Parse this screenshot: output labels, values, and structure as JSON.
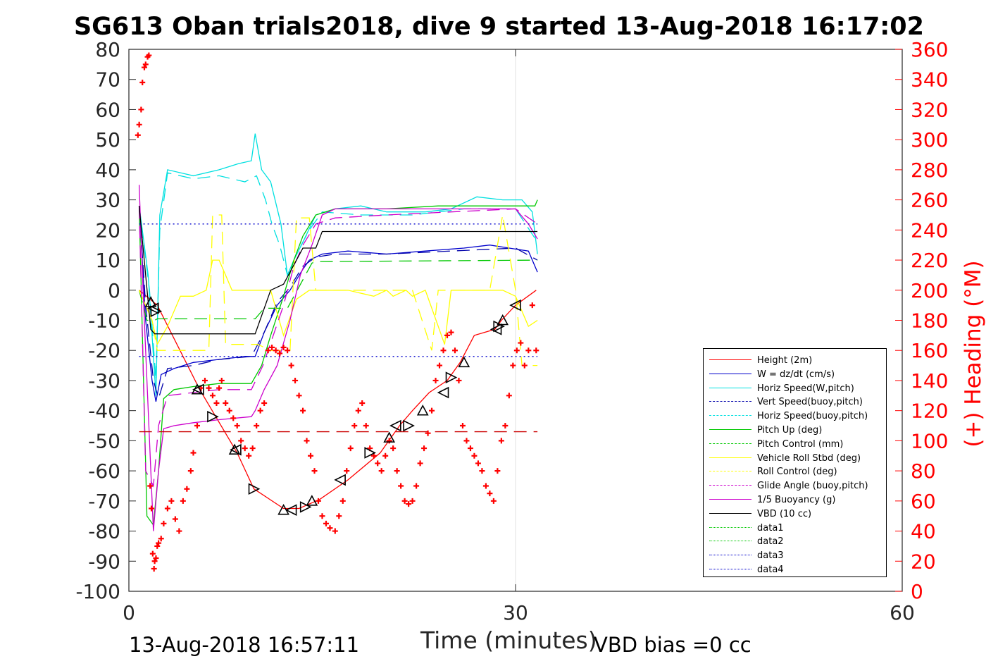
{
  "header": {
    "title": "SG613 Oban trials2018, dive 9 started 13-Aug-2018 16:17:02"
  },
  "footer": {
    "left": "13-Aug-2018 16:57:11",
    "right": "VBD bias =0 cc"
  },
  "chart_data": {
    "type": "line",
    "xlabel": "Time (minutes)",
    "ylabel": "",
    "y2label": "(+) Heading (°M)",
    "xlim": [
      0,
      60
    ],
    "ylim": [
      -100,
      80
    ],
    "y2lim": [
      0,
      360
    ],
    "xticks": [
      0,
      30,
      60
    ],
    "yticks": [
      -100,
      -90,
      -80,
      -70,
      -60,
      -50,
      -40,
      -30,
      -20,
      -10,
      0,
      10,
      20,
      30,
      40,
      50,
      60,
      70,
      80
    ],
    "y2ticks": [
      0,
      20,
      40,
      60,
      80,
      100,
      120,
      140,
      160,
      180,
      200,
      220,
      240,
      260,
      280,
      300,
      320,
      340,
      360
    ],
    "grid": "x-only",
    "legend_position": "lower-right",
    "series": [
      {
        "name": "Height (2m)",
        "color": "#ff0000",
        "style": "solid",
        "x": [
          0.8,
          2.2,
          5.5,
          8.4,
          9.7,
          12.0,
          13.2,
          14.8,
          17.0,
          19.5,
          21.0,
          22.0,
          23.3,
          24.7,
          25.7,
          26.8,
          28.4,
          28.9,
          30.0,
          31.6
        ],
        "y": [
          0,
          -5,
          -33,
          -54,
          -66,
          -72.5,
          -72.5,
          -69.5,
          -63,
          -54,
          -45,
          -40,
          -34,
          -30,
          -24,
          -15,
          -13,
          -10,
          -5,
          0
        ]
      },
      {
        "name": "W = dz/dt (cm/s)",
        "color": "#0000cc",
        "style": "solid",
        "x": [
          0.8,
          1.3,
          1.8,
          2.1,
          2.5,
          3.5,
          5.0,
          7.0,
          9.0,
          9.8,
          10.5,
          11.5,
          12.5,
          13.5,
          14.0,
          15.0,
          17.0,
          20.0,
          23.0,
          26.0,
          28.0,
          29.5,
          31.0,
          31.7
        ],
        "y": [
          28,
          -10,
          -30,
          -37,
          -28,
          -26,
          -24,
          -23,
          -22,
          -22,
          -14,
          -5,
          0,
          7,
          10,
          12,
          13,
          12,
          13,
          14,
          15,
          14,
          13,
          6
        ]
      },
      {
        "name": "Horiz Speed(W,pitch)",
        "color": "#00e0e0",
        "style": "solid",
        "x": [
          0.8,
          1.5,
          2.1,
          2.4,
          3.0,
          5.0,
          7.0,
          8.5,
          9.5,
          9.8,
          10.3,
          11.0,
          11.8,
          12.3,
          12.8,
          13.5,
          14.5,
          16.0,
          18.0,
          20.0,
          23.0,
          25.0,
          27.0,
          29.0,
          30.5,
          31.3,
          31.7
        ],
        "y": [
          28,
          5,
          -35,
          25,
          40,
          38,
          40,
          42,
          43,
          52,
          40,
          36,
          22,
          5,
          10,
          16,
          25,
          27,
          28,
          26,
          26,
          27,
          31,
          30,
          30,
          26,
          12
        ]
      },
      {
        "name": "Vert Speed(buoy,pitch)",
        "color": "#0000aa",
        "style": "dashed",
        "x": [
          0.8,
          1.3,
          1.9,
          2.3,
          3.0,
          5.0,
          7.0,
          9.5,
          10.5,
          11.5,
          12.5,
          13.5,
          14.5,
          16.0,
          20.0,
          25.0,
          30.0,
          31.7
        ],
        "y": [
          28,
          -5,
          -30,
          -36,
          -26,
          -25,
          -23,
          -22,
          -14,
          -4,
          1,
          8,
          11,
          12,
          12,
          13,
          14,
          10
        ]
      },
      {
        "name": "Horiz Speed(buoy,pitch)",
        "color": "#00e0e0",
        "style": "dashed",
        "x": [
          0.8,
          1.6,
          2.1,
          2.4,
          3.0,
          5.0,
          7.0,
          9.0,
          9.9,
          10.6,
          11.1,
          11.7,
          12.3,
          13.0,
          14.0,
          15.0,
          18.0,
          22.0,
          26.0,
          30.0,
          31.7
        ],
        "y": [
          28,
          0,
          -30,
          20,
          39,
          37,
          38,
          36,
          38,
          30,
          22,
          15,
          5,
          12,
          20,
          26,
          25,
          25,
          27,
          27,
          16
        ]
      },
      {
        "name": "Pitch Up (deg)",
        "color": "#00c800",
        "style": "solid",
        "x": [
          0.8,
          1.4,
          1.9,
          2.3,
          2.7,
          3.5,
          5.0,
          7.0,
          9.5,
          10.3,
          11.0,
          12.0,
          12.8,
          13.5,
          14.5,
          16.0,
          20.0,
          24.0,
          28.0,
          30.5,
          31.5,
          31.7
        ],
        "y": [
          28,
          -75,
          -78,
          -60,
          -36,
          -33,
          -32,
          -31,
          -31,
          -25,
          -15,
          -2,
          10,
          18,
          25,
          27,
          27,
          28,
          28,
          28,
          28,
          30
        ]
      },
      {
        "name": "Pitch Control (mm)",
        "color": "#00c800",
        "style": "dashed",
        "x": [
          0.8,
          1.4,
          2.0,
          2.2,
          9.8,
          10.5,
          12.3,
          14.2,
          14.5,
          31.7
        ],
        "y": [
          0,
          -10,
          -10,
          -9.5,
          -9.5,
          -6,
          -6,
          9,
          9.5,
          10
        ]
      },
      {
        "name": "Vehicle Roll Stbd (deg)",
        "color": "#ffff00",
        "style": "solid",
        "x": [
          0.8,
          1.8,
          2.2,
          3.0,
          4.0,
          5.0,
          6.0,
          6.5,
          7.0,
          7.5,
          8.0,
          8.5,
          9.0,
          10.0,
          11.0,
          12.0,
          13.0,
          14.0,
          15.0,
          17.0,
          19.0,
          20.0,
          20.5,
          21.5,
          22.0,
          23.0,
          24.0,
          24.5,
          25.0,
          25.5,
          26.0,
          27.0,
          28.0,
          29.0,
          30.0,
          31.0,
          31.7
        ],
        "y": [
          0,
          -10,
          -18,
          -12,
          -2,
          -2,
          0,
          10,
          10,
          5,
          0,
          0,
          0,
          0,
          0,
          -15,
          -3,
          0,
          0,
          0,
          -2,
          0,
          -2,
          0,
          -2,
          0,
          -12,
          -18,
          0,
          0,
          0,
          0,
          0,
          0,
          -2,
          -12,
          -10
        ]
      },
      {
        "name": "Roll Control (deg)",
        "color": "#ffff00",
        "style": "dashed",
        "x": [
          0.8,
          1.8,
          2.2,
          5.0,
          6.2,
          6.5,
          7.2,
          7.5,
          8.0,
          10.0,
          11.0,
          12.5,
          13.0,
          14.0,
          14.5,
          16.0,
          18.0,
          20.0,
          22.0,
          23.5,
          24.0,
          25.0,
          26.0,
          27.0,
          28.0,
          29.0,
          30.0,
          30.5,
          31.7
        ],
        "y": [
          0,
          -10,
          -20,
          -20,
          -20,
          25,
          25,
          -18,
          -18,
          -18,
          -20,
          -20,
          24,
          24,
          0,
          0,
          0,
          0,
          0,
          -20,
          0,
          0,
          0,
          0,
          0,
          25,
          0,
          -25,
          -25
        ]
      },
      {
        "name": "Glide Angle (buoy,pitch)",
        "color": "#cc00cc",
        "style": "dashed",
        "x": [
          0.8,
          1.3,
          1.9,
          2.3,
          3.0,
          5.0,
          7.0,
          9.5,
          10.4,
          11.2,
          12.0,
          12.8,
          13.5,
          14.5,
          16.0,
          20.0,
          25.0,
          30.0,
          31.7
        ],
        "y": [
          28,
          -60,
          -65,
          -45,
          -35,
          -34,
          -33,
          -33,
          -25,
          -15,
          -5,
          8,
          15,
          22,
          24,
          25,
          26,
          27,
          22
        ]
      },
      {
        "name": "1/5 Buoyancy (g)",
        "color": "#cc00cc",
        "style": "solid",
        "x": [
          0.8,
          1.1,
          1.6,
          1.9,
          2.3,
          2.7,
          3.5,
          5.0,
          7.0,
          9.5,
          9.8,
          10.5,
          11.5,
          12.5,
          13.3,
          14.2,
          15.0,
          16.0,
          20.0,
          25.0,
          30.0,
          31.0,
          31.7
        ],
        "y": [
          35,
          0,
          -50,
          -80,
          -60,
          -46,
          -45,
          -44,
          -43,
          -42,
          -40,
          -33,
          -25,
          -10,
          5,
          15,
          25,
          27,
          27,
          27,
          27,
          22,
          17
        ]
      },
      {
        "name": "VBD (10 cc)",
        "color": "#000000",
        "style": "solid",
        "x": [
          0.8,
          1.3,
          1.7,
          2.0,
          2.4,
          9.8,
          11.0,
          12.0,
          13.0,
          13.5,
          14.5,
          15.0,
          31.7
        ],
        "y": [
          28,
          5,
          -13,
          -14.5,
          -14.5,
          -14.5,
          0,
          2,
          10,
          14,
          14,
          19.5,
          19.5
        ]
      },
      {
        "name": "data1",
        "color": "#00c800",
        "style": "dotted",
        "x": [],
        "y": []
      },
      {
        "name": "data2",
        "color": "#00c800",
        "style": "dotted",
        "x": [],
        "y": []
      },
      {
        "name": "data3",
        "color": "#0000cc",
        "style": "dotted",
        "x": [
          0.8,
          31.7
        ],
        "y": [
          -22,
          -22
        ]
      },
      {
        "name": "data4",
        "color": "#0000cc",
        "style": "dotted",
        "x": [
          0.8,
          31.7
        ],
        "y": [
          22,
          22
        ]
      }
    ],
    "reference_lines": [
      {
        "color": "#cc0000",
        "style": "dashed",
        "y": -47,
        "x": [
          0.8,
          31.7
        ]
      }
    ],
    "heading_points": {
      "color": "#ff0000",
      "marker": "plus",
      "axis": "right",
      "x": [
        0.7,
        0.8,
        0.95,
        1.05,
        1.2,
        1.3,
        1.45,
        1.55,
        1.65,
        1.75,
        1.85,
        1.95,
        2.0,
        2.1,
        2.2,
        2.3,
        2.5,
        2.7,
        3.0,
        3.3,
        3.6,
        3.9,
        4.2,
        4.5,
        4.8,
        5.0,
        5.3,
        5.6,
        5.9,
        6.2,
        6.5,
        6.8,
        7.0,
        7.2,
        7.5,
        7.8,
        8.1,
        8.4,
        8.7,
        9.0,
        9.3,
        9.6,
        9.9,
        10.2,
        10.5,
        10.8,
        11.1,
        11.4,
        11.7,
        12.0,
        12.3,
        12.6,
        12.9,
        13.2,
        13.5,
        13.8,
        14.1,
        14.4,
        14.7,
        15.0,
        15.3,
        15.6,
        16.0,
        16.3,
        16.6,
        16.9,
        17.2,
        17.5,
        17.8,
        18.1,
        18.4,
        18.7,
        19.0,
        19.3,
        19.6,
        19.9,
        20.2,
        20.5,
        20.8,
        21.1,
        21.4,
        21.7,
        22.0,
        22.3,
        22.6,
        22.9,
        23.2,
        23.5,
        23.8,
        24.1,
        24.4,
        24.7,
        25.0,
        25.3,
        25.6,
        25.9,
        26.2,
        26.5,
        26.8,
        27.1,
        27.4,
        27.7,
        28.0,
        28.3,
        28.6,
        28.9,
        29.2,
        29.5,
        29.8,
        30.1,
        30.4,
        30.7,
        31.0,
        31.3,
        31.6
      ],
      "y": [
        303,
        310,
        320,
        338,
        348,
        350,
        355,
        356,
        70,
        55,
        25,
        15,
        20,
        22,
        30,
        32,
        35,
        45,
        55,
        60,
        48,
        40,
        60,
        68,
        80,
        92,
        110,
        135,
        140,
        135,
        130,
        125,
        135,
        140,
        125,
        120,
        115,
        110,
        100,
        95,
        90,
        95,
        110,
        120,
        125,
        160,
        162,
        160,
        158,
        162,
        160,
        150,
        140,
        130,
        120,
        100,
        90,
        80,
        60,
        50,
        45,
        42,
        40,
        50,
        60,
        80,
        95,
        110,
        120,
        125,
        110,
        95,
        90,
        85,
        80,
        90,
        100,
        95,
        80,
        70,
        60,
        58,
        60,
        70,
        85,
        95,
        105,
        120,
        140,
        150,
        160,
        170,
        172,
        160,
        140,
        110,
        100,
        95,
        90,
        85,
        80,
        70,
        65,
        60,
        80,
        100,
        110,
        130,
        150,
        160,
        165,
        150,
        160,
        190,
        160
      ]
    },
    "triangle_markers": {
      "color": "#000000",
      "x": [
        1.7,
        1.9,
        2.1,
        5.3,
        5.4,
        6.5,
        8.2,
        8.3,
        9.7,
        12.0,
        12.6,
        13.7,
        14.2,
        16.4,
        18.7,
        20.2,
        20.7,
        21.7,
        22.8,
        24.4,
        25.0,
        26.0,
        28.5,
        28.7,
        29.0,
        30.0
      ],
      "y": [
        -4,
        -6,
        -7,
        -33,
        -33,
        -42,
        -53,
        -53,
        -66,
        -73,
        -73,
        -72,
        -70,
        -63,
        -54,
        -49,
        -45,
        -45,
        -40,
        -34,
        -29,
        -24,
        -13,
        -12,
        -10,
        -5
      ]
    }
  }
}
